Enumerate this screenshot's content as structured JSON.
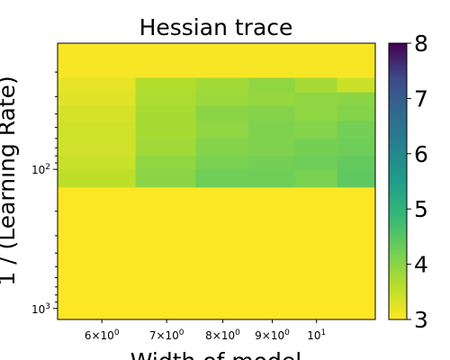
{
  "chart_data": {
    "type": "heatmap",
    "title": "Hessian trace",
    "xlabel": "Width of model",
    "ylabel": "1 / (Learning Rate)",
    "x_scale": "log",
    "y_scale": "log",
    "y_inverted": true,
    "x_tick_labels": [
      {
        "value": 6,
        "base": "6×10",
        "exp": "0"
      },
      {
        "value": 7,
        "base": "7×10",
        "exp": "0"
      },
      {
        "value": 8,
        "base": "8×10",
        "exp": "0"
      },
      {
        "value": 9,
        "base": "9×10",
        "exp": "0"
      },
      {
        "value": 10,
        "base": "10",
        "exp": "1"
      }
    ],
    "y_tick_labels": [
      {
        "value": 100,
        "base": "10",
        "exp": "2"
      },
      {
        "value": 1000,
        "base": "10",
        "exp": "3"
      }
    ],
    "x_edges": [
      5.4,
      6.5,
      7.5,
      8.5,
      9.5,
      10.5,
      11.5
    ],
    "y_edges": [
      12.4,
      22,
      28,
      35,
      45,
      60,
      80,
      100,
      135,
      1200
    ],
    "values": [
      [
        3.05,
        3.05,
        3.05,
        3.05,
        3.05,
        3.05
      ],
      [
        3.2,
        3.65,
        3.8,
        3.95,
        3.75,
        3.45
      ],
      [
        3.25,
        3.7,
        3.85,
        3.9,
        3.95,
        4.0
      ],
      [
        3.35,
        3.75,
        4.0,
        4.05,
        3.95,
        4.05
      ],
      [
        3.4,
        3.75,
        3.95,
        4.1,
        4.05,
        4.2
      ],
      [
        3.4,
        3.8,
        4.05,
        4.1,
        4.2,
        4.25
      ],
      [
        3.45,
        3.95,
        4.15,
        4.2,
        4.25,
        4.35
      ],
      [
        3.55,
        4.0,
        4.25,
        4.25,
        4.15,
        4.4
      ],
      [
        3.0,
        3.0,
        3.0,
        3.0,
        3.0,
        3.0
      ]
    ],
    "colorbar": {
      "min": 3,
      "max": 8,
      "ticks": [
        "3",
        "4",
        "5",
        "6",
        "7",
        "8"
      ],
      "colormap": "viridis"
    },
    "grid": false
  }
}
